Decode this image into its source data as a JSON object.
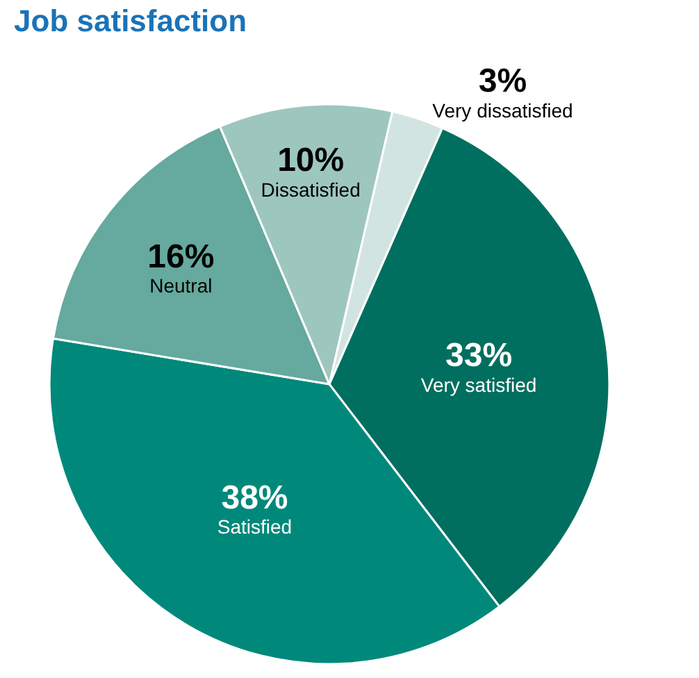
{
  "chart_data": {
    "type": "pie",
    "title": "Job satisfaction",
    "categories": [
      "Very dissatisfied",
      "Very satisfied",
      "Satisfied",
      "Neutral",
      "Dissatisfied"
    ],
    "values": [
      3,
      33,
      38,
      16,
      10
    ],
    "value_labels": [
      "3%",
      "33%",
      "38%",
      "16%",
      "10%"
    ],
    "colors": [
      "#d2e4e1",
      "#006f5f",
      "#00897b",
      "#66a99e",
      "#9dc7be"
    ],
    "legend": false
  }
}
